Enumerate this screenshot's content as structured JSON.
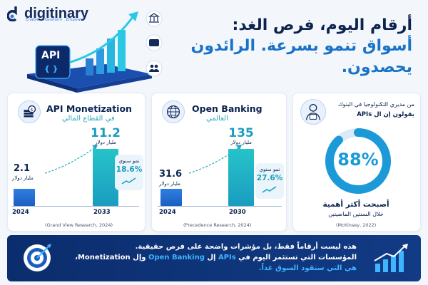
{
  "brand": {
    "name": "digitinary",
    "tagline": "Enable . Transform . Empower"
  },
  "hero": {
    "api_label": "API",
    "api_braces": "{ }"
  },
  "headline": {
    "line1": "أرقام اليوم، فرص الغد:",
    "line2": "أسواق تنمو بسرعة. الرائدون يحصدون."
  },
  "cards": [
    {
      "title": "API Monetization",
      "subtitle": "في القطاع المالي",
      "icon": "money-stack-icon",
      "growth_label": "نمو سنوي",
      "growth_value": "18.6%",
      "source": "(Grand View Research, 2024)"
    },
    {
      "title": "Open Banking",
      "subtitle": "العالمي",
      "icon": "bank-globe-icon",
      "growth_label": "نمو سنوي",
      "growth_value": "27.6%",
      "source": "(Precedence Research, 2024)"
    },
    {
      "top_line1": "من مديري التكنولوجيا في البنوك",
      "top_line2": "يقولون إن ال APIs",
      "icon": "tech-manager-icon",
      "percent_label": "88%",
      "percent_value": 0.88,
      "bottom_line1": "أصبحت أكثر أهمية",
      "bottom_line2": "خلال السنتين الماضيتين",
      "source": "(McKinsey, 2022)"
    }
  ],
  "chart_data": [
    {
      "type": "bar",
      "categories": [
        "2024",
        "2033"
      ],
      "values": [
        2.1,
        11.2
      ],
      "value_labels": [
        "2.1",
        "11.2"
      ],
      "unit": "مليار دولار",
      "title": "API Monetization"
    },
    {
      "type": "bar",
      "categories": [
        "2024",
        "2030"
      ],
      "values": [
        31.6,
        135
      ],
      "value_labels": [
        "31.6",
        "135"
      ],
      "unit": "مليار دولار",
      "title": "Open Banking"
    }
  ],
  "footer": {
    "line1": "هذه ليست أرقاماً فقط، بل مؤشرات واضحة على فرص حقيقية.",
    "line2_a": "المؤسسات التي تستثمر اليوم في ",
    "line2_apis": "APIs",
    "line2_b": " إل ",
    "line2_ob": "Open Banking",
    "line2_c": " وإل Monetization،",
    "line3": "هي التي ستقود السوق غداً."
  },
  "colors": {
    "navy": "#0c2350",
    "blue": "#1a73c7",
    "teal": "#1a9dc0",
    "accent": "#3fb4ff"
  }
}
